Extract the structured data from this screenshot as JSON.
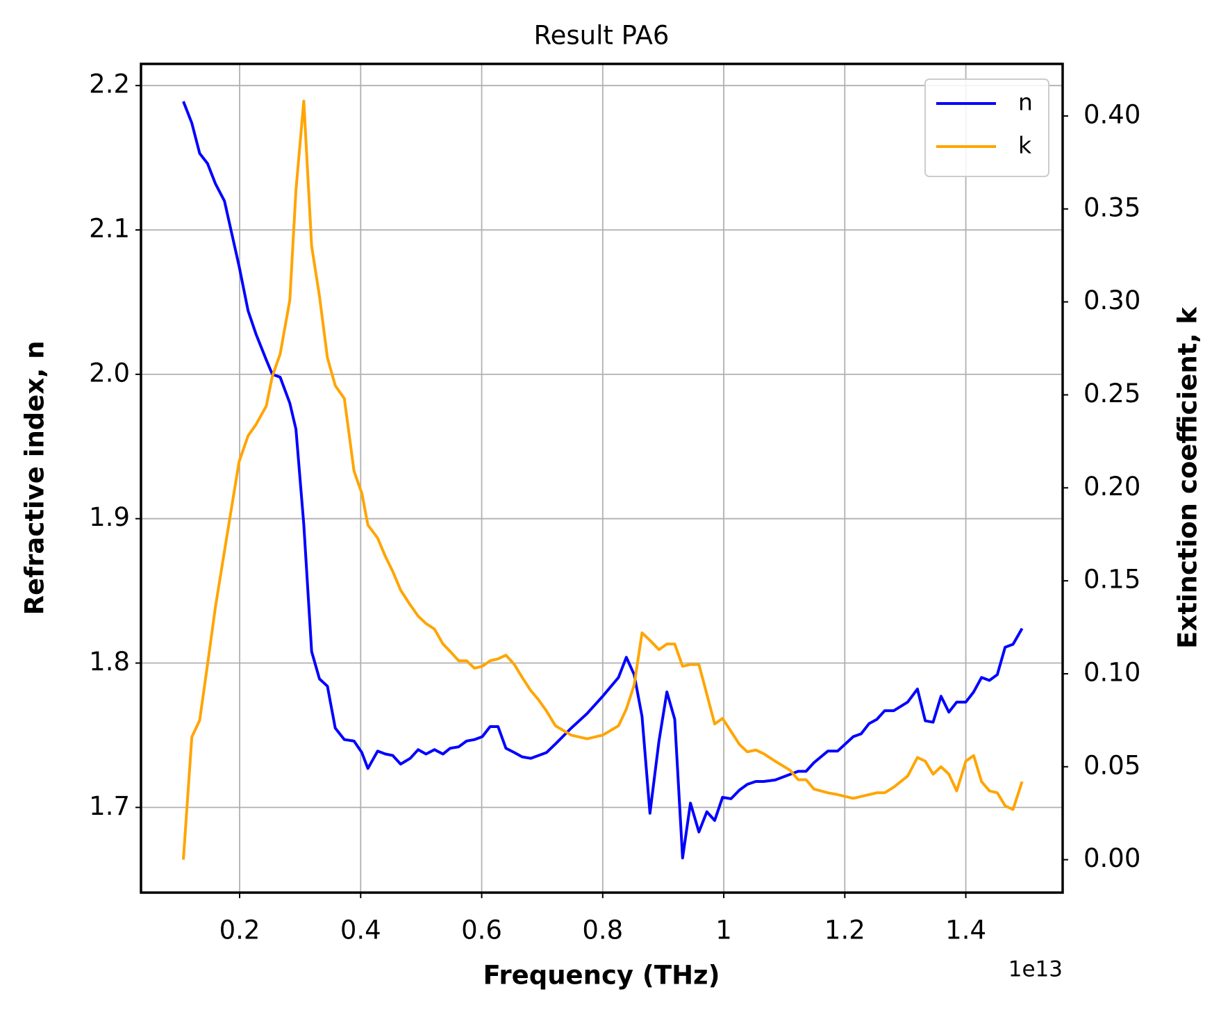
{
  "chart_data": {
    "type": "line",
    "title": "Result PA6",
    "x_label": "Frequency (THz)",
    "x_offset_label": "1e13",
    "y_label": "Refractive index, n",
    "y2_label": "Extinction coefficient, k",
    "x": [
      0.107,
      0.121,
      0.134,
      0.147,
      0.16,
      0.175,
      0.199,
      0.214,
      0.227,
      0.244,
      0.254,
      0.267,
      0.283,
      0.293,
      0.306,
      0.319,
      0.332,
      0.345,
      0.358,
      0.373,
      0.389,
      0.402,
      0.412,
      0.428,
      0.441,
      0.453,
      0.466,
      0.482,
      0.495,
      0.508,
      0.522,
      0.536,
      0.548,
      0.562,
      0.575,
      0.588,
      0.601,
      0.614,
      0.627,
      0.64,
      0.654,
      0.667,
      0.681,
      0.694,
      0.707,
      0.722,
      0.748,
      0.774,
      0.8,
      0.826,
      0.839,
      0.852,
      0.865,
      0.878,
      0.893,
      0.906,
      0.919,
      0.932,
      0.945,
      0.959,
      0.972,
      0.985,
      0.998,
      1.012,
      1.026,
      1.039,
      1.053,
      1.066,
      1.085,
      1.11,
      1.123,
      1.136,
      1.149,
      1.172,
      1.188,
      1.214,
      1.227,
      1.24,
      1.253,
      1.266,
      1.281,
      1.304,
      1.32,
      1.333,
      1.346,
      1.359,
      1.372,
      1.385,
      1.4,
      1.413,
      1.426,
      1.439,
      1.452,
      1.465,
      1.478,
      1.493
    ],
    "series": [
      {
        "name": "n",
        "color": "#0000ff",
        "axis": "y",
        "values": [
          2.189,
          2.174,
          2.153,
          2.146,
          2.132,
          2.12,
          2.075,
          2.044,
          2.028,
          2.01,
          2.0,
          1.998,
          1.98,
          1.962,
          1.896,
          1.808,
          1.789,
          1.784,
          1.755,
          1.747,
          1.746,
          1.738,
          1.727,
          1.739,
          1.737,
          1.736,
          1.73,
          1.734,
          1.74,
          1.737,
          1.74,
          1.737,
          1.741,
          1.742,
          1.746,
          1.747,
          1.749,
          1.756,
          1.756,
          1.741,
          1.738,
          1.735,
          1.734,
          1.736,
          1.738,
          1.744,
          1.755,
          1.765,
          1.777,
          1.79,
          1.804,
          1.792,
          1.763,
          1.696,
          1.746,
          1.78,
          1.761,
          1.665,
          1.703,
          1.683,
          1.697,
          1.691,
          1.707,
          1.706,
          1.712,
          1.716,
          1.718,
          1.718,
          1.719,
          1.723,
          1.725,
          1.725,
          1.731,
          1.739,
          1.739,
          1.749,
          1.751,
          1.758,
          1.761,
          1.767,
          1.767,
          1.773,
          1.782,
          1.76,
          1.759,
          1.777,
          1.766,
          1.773,
          1.773,
          1.78,
          1.79,
          1.788,
          1.792,
          1.811,
          1.813,
          1.824
        ]
      },
      {
        "name": "k",
        "color": "#ffa500",
        "axis": "y2",
        "values": [
          0.0,
          0.066,
          0.075,
          0.105,
          0.136,
          0.166,
          0.214,
          0.228,
          0.234,
          0.244,
          0.26,
          0.272,
          0.301,
          0.36,
          0.408,
          0.33,
          0.303,
          0.27,
          0.255,
          0.248,
          0.209,
          0.197,
          0.18,
          0.173,
          0.163,
          0.155,
          0.145,
          0.137,
          0.131,
          0.127,
          0.124,
          0.116,
          0.112,
          0.107,
          0.107,
          0.103,
          0.104,
          0.107,
          0.108,
          0.11,
          0.105,
          0.098,
          0.091,
          0.086,
          0.08,
          0.072,
          0.067,
          0.065,
          0.067,
          0.072,
          0.081,
          0.094,
          0.122,
          0.118,
          0.113,
          0.116,
          0.116,
          0.104,
          0.105,
          0.105,
          0.089,
          0.073,
          0.076,
          0.069,
          0.062,
          0.058,
          0.059,
          0.057,
          0.053,
          0.048,
          0.043,
          0.043,
          0.038,
          0.036,
          0.035,
          0.033,
          0.034,
          0.035,
          0.036,
          0.036,
          0.039,
          0.045,
          0.055,
          0.053,
          0.046,
          0.05,
          0.046,
          0.037,
          0.053,
          0.056,
          0.042,
          0.037,
          0.036,
          0.029,
          0.027,
          0.042
        ]
      }
    ],
    "xlim": [
      0.037,
      1.56
    ],
    "ylim": [
      1.641,
      2.215
    ],
    "y2lim": [
      -0.0177,
      0.428
    ],
    "xticks": [
      0.2,
      0.4,
      0.6,
      0.8,
      1.0,
      1.2,
      1.4
    ],
    "yticks": [
      1.7,
      1.8,
      1.9,
      {
        "value": 2.0,
        "label": "2.0"
      },
      2.1,
      2.2
    ],
    "y2ticks": [
      {
        "value": 0,
        "label": "0.00"
      },
      {
        "value": 0.05,
        "label": "0.05"
      },
      {
        "value": 0.1,
        "label": "0.10"
      },
      {
        "value": 0.15,
        "label": "0.15"
      },
      {
        "value": 0.2,
        "label": "0.20"
      },
      {
        "value": 0.25,
        "label": "0.25"
      },
      {
        "value": 0.3,
        "label": "0.30"
      },
      {
        "value": 0.35,
        "label": "0.35"
      },
      {
        "value": 0.4,
        "label": "0.40"
      }
    ],
    "grid": true,
    "legend": "upper right"
  }
}
